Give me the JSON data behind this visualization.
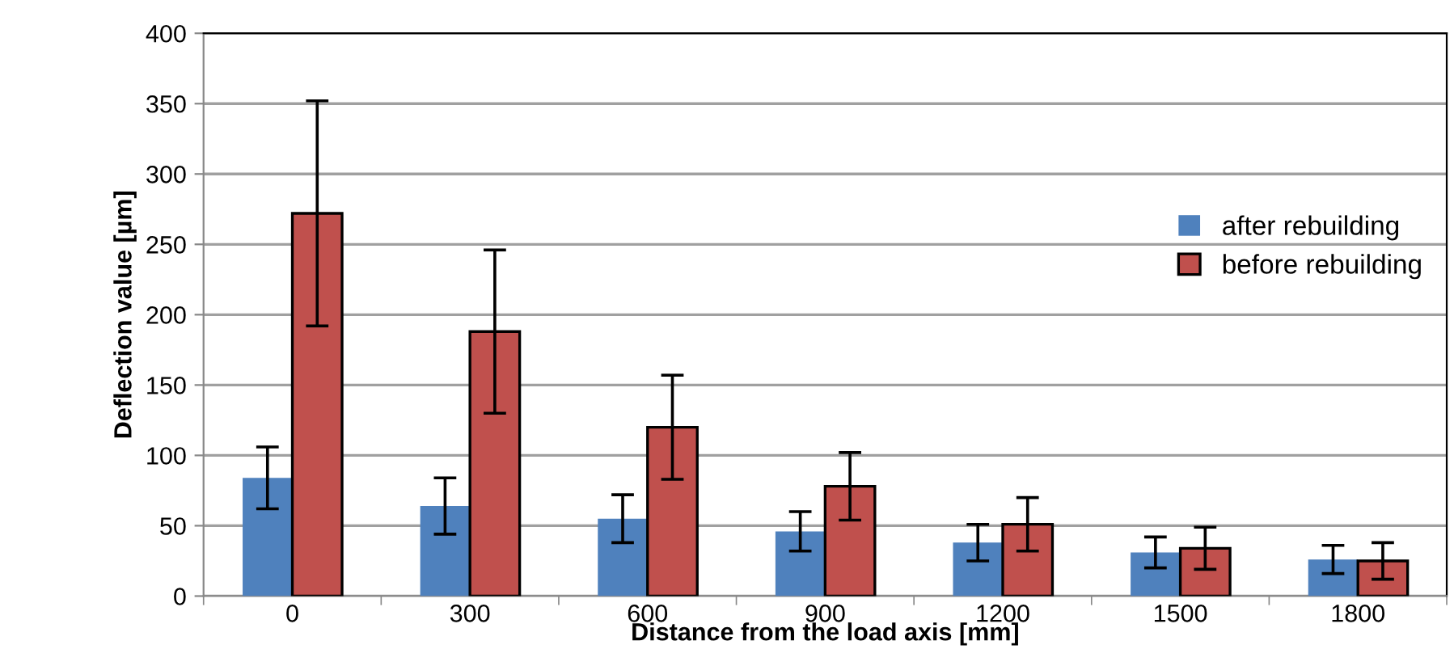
{
  "chart_data": {
    "type": "bar",
    "xlabel": "Distance from the load axis [mm]",
    "ylabel": "Deflection value [µm]",
    "categories": [
      "0",
      "300",
      "600",
      "900",
      "1200",
      "1500",
      "1800"
    ],
    "series": [
      {
        "name": "after rebuilding",
        "color": "#4f81bd",
        "values": [
          84,
          64,
          55,
          46,
          38,
          31,
          26
        ],
        "errors": [
          22,
          20,
          17,
          14,
          13,
          11,
          10
        ]
      },
      {
        "name": "before rebuilding",
        "color": "#c0504d",
        "values": [
          272,
          188,
          120,
          78,
          51,
          34,
          25
        ],
        "errors": [
          80,
          58,
          37,
          24,
          19,
          15,
          13
        ]
      }
    ],
    "ylim": [
      0,
      400
    ],
    "yticks": [
      0,
      50,
      100,
      150,
      200,
      250,
      300,
      350,
      400
    ],
    "grid": "y",
    "legend": "right"
  }
}
